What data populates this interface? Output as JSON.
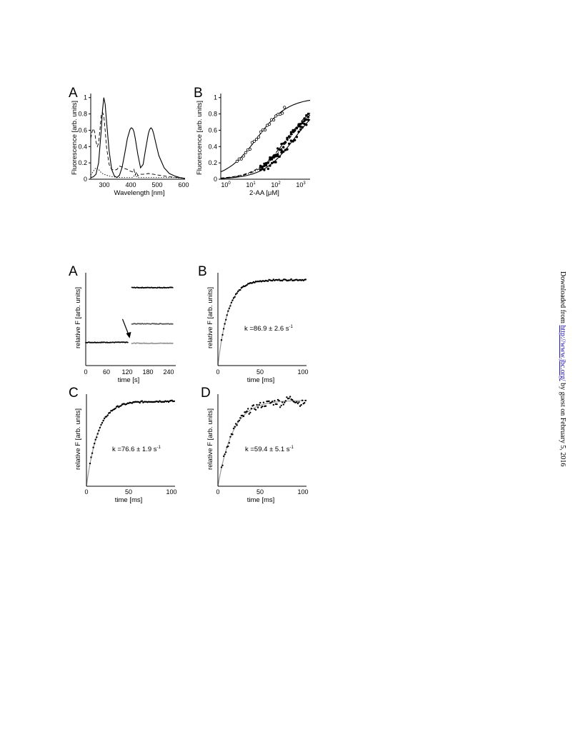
{
  "figure1": {
    "panelA": {
      "label": "A",
      "ylabel": "Fluorescence [arb. units]",
      "xlabel": "Wavelength [nm]",
      "xticks": [
        "300",
        "400",
        "500",
        "600"
      ],
      "yticks": [
        "0",
        "0.2",
        "0.4",
        "0.6",
        "0.8",
        "1"
      ]
    },
    "panelB": {
      "label": "B",
      "ylabel": "Fluorescence [arb. units]",
      "xlabel": "2-AA [μM]",
      "xticks": [
        {
          "base": "10",
          "exp": "0"
        },
        {
          "base": "10",
          "exp": "1"
        },
        {
          "base": "10",
          "exp": "2"
        },
        {
          "base": "10",
          "exp": "3"
        }
      ],
      "yticks": [
        "0",
        "0.2",
        "0.4",
        "0.6",
        "0.8",
        "1"
      ]
    }
  },
  "figure2": {
    "panelA": {
      "label": "A",
      "ylabel": "relative F [arb. units]",
      "xlabel": "time [s]",
      "xticks": [
        "0",
        "60",
        "120",
        "180",
        "240"
      ]
    },
    "panelB": {
      "label": "B",
      "ylabel": "relative F [arb. units]",
      "xlabel": "time [ms]",
      "xticks": [
        "0",
        "50",
        "100"
      ],
      "annotation": "k =86.9 ± 2.6 s",
      "annotation_exp": "-1"
    },
    "panelC": {
      "label": "C",
      "ylabel": "relative F [arb. units]",
      "xlabel": "time [ms]",
      "xticks": [
        "0",
        "50",
        "100"
      ],
      "annotation": "k =76.6 ± 1.9 s",
      "annotation_exp": "-1"
    },
    "panelD": {
      "label": "D",
      "ylabel": "relative F [arb. units]",
      "xlabel": "time [ms]",
      "xticks": [
        "0",
        "50",
        "100"
      ],
      "annotation": "k =59.4 ± 5.1 s",
      "annotation_exp": "-1"
    }
  },
  "sidebar": {
    "prefix": "Downloaded from ",
    "link": "http://www.jbc.org/",
    "suffix": " by guest on February 5, 2016"
  },
  "chart_data": [
    {
      "id": "fig1A",
      "type": "line",
      "xlabel": "Wavelength [nm]",
      "ylabel": "Fluorescence [arb. units]",
      "xlim": [
        240,
        600
      ],
      "ylim": [
        0,
        1.05
      ],
      "series": [
        {
          "style": "solid",
          "x": [
            240,
            250,
            260,
            270,
            280,
            285,
            290,
            295,
            300,
            310,
            320,
            330,
            340,
            350,
            360,
            370,
            380,
            390,
            395,
            400,
            405,
            410,
            420,
            430,
            440,
            450,
            460,
            465,
            470,
            475,
            480,
            490,
            500,
            520,
            540,
            560,
            580,
            600
          ],
          "y": [
            0.02,
            0.03,
            0.06,
            0.2,
            0.6,
            0.85,
            1.0,
            0.92,
            0.72,
            0.35,
            0.12,
            0.04,
            0.02,
            0.05,
            0.15,
            0.32,
            0.5,
            0.61,
            0.63,
            0.62,
            0.58,
            0.5,
            0.3,
            0.14,
            0.18,
            0.38,
            0.56,
            0.61,
            0.63,
            0.61,
            0.56,
            0.42,
            0.29,
            0.14,
            0.07,
            0.04,
            0.02,
            0.01
          ]
        },
        {
          "style": "dashed",
          "x": [
            240,
            245,
            250,
            255,
            260,
            265,
            270,
            275,
            280,
            285,
            290,
            295,
            300,
            310,
            320,
            330,
            340,
            350,
            360,
            370,
            380,
            390,
            400,
            405,
            410,
            415,
            420,
            430,
            440,
            460,
            480,
            500,
            540,
            580,
            600
          ],
          "y": [
            0.5,
            0.58,
            0.62,
            0.58,
            0.46,
            0.4,
            0.44,
            0.6,
            0.78,
            0.82,
            0.78,
            0.6,
            0.4,
            0.18,
            0.12,
            0.11,
            0.12,
            0.16,
            0.15,
            0.13,
            0.12,
            0.1,
            0.09,
            0.12,
            0.05,
            0.09,
            0.04,
            0.06,
            0.06,
            0.07,
            0.06,
            0.05,
            0.03,
            0.02,
            0.01
          ]
        },
        {
          "style": "dotted",
          "x": [
            240,
            250,
            260,
            270,
            280,
            290,
            300,
            320,
            360,
            400,
            405,
            410,
            415,
            420,
            440,
            480,
            520,
            560,
            600
          ],
          "y": [
            0.05,
            0.1,
            0.14,
            0.12,
            0.08,
            0.06,
            0.05,
            0.03,
            0.02,
            0.02,
            0.04,
            0.06,
            0.03,
            0.02,
            0.02,
            0.02,
            0.02,
            0.02,
            0.01
          ]
        }
      ]
    },
    {
      "id": "fig1B",
      "type": "scatter",
      "xlabel": "2-AA [μM]",
      "ylabel": "Fluorescence [arb. units]",
      "xscale": "log",
      "xlim": [
        0.5,
        150
      ],
      "ylim": [
        0,
        1.05
      ],
      "series": [
        {
          "style": "solid",
          "kd": 5,
          "n": 1.0
        },
        {
          "style": "dashed",
          "kd": 35,
          "n": 1.0
        },
        {
          "style": "dashdot",
          "kd": 40,
          "n": 1.0
        },
        {
          "style": "solid",
          "kd": 55,
          "n": 1.0
        }
      ]
    },
    {
      "id": "fig2A",
      "type": "scatter",
      "xlabel": "time [s]",
      "ylabel": "relative F [arb. units]",
      "xlim": [
        0,
        250
      ],
      "ylim": [
        0,
        1.0
      ],
      "series": [
        {
          "color": "#000000",
          "segments": [
            {
              "x0": 0,
              "x1": 118,
              "level": 0.25
            },
            {
              "x0": 128,
              "x1": 242,
              "level": 0.84
            }
          ]
        },
        {
          "color": "#555555",
          "segments": [
            {
              "x0": 128,
              "x1": 242,
              "level": 0.45
            }
          ]
        },
        {
          "color": "#999999",
          "segments": [
            {
              "x0": 128,
              "x1": 242,
              "level": 0.24
            }
          ]
        }
      ],
      "arrow": {
        "x": 122,
        "y": 0.27
      }
    },
    {
      "id": "fig2B",
      "type": "scatter",
      "xlabel": "time [ms]",
      "ylabel": "relative F [arb. units]",
      "xlim": [
        0,
        100
      ],
      "ylim": [
        0,
        1.05
      ],
      "k_per_s": 86.9,
      "plateau": 0.97,
      "noise": 0.008
    },
    {
      "id": "fig2C",
      "type": "scatter",
      "xlabel": "time [ms]",
      "ylabel": "relative F [arb. units]",
      "xlim": [
        0,
        100
      ],
      "ylim": [
        0,
        1.05
      ],
      "k_per_s": 76.6,
      "plateau": 0.97,
      "noise": 0.01
    },
    {
      "id": "fig2D",
      "type": "scatter",
      "xlabel": "time [ms]",
      "ylabel": "relative F [arb. units]",
      "xlim": [
        0,
        100
      ],
      "ylim": [
        0,
        1.05
      ],
      "k_per_s": 59.4,
      "plateau": 0.98,
      "noise": 0.035
    }
  ]
}
